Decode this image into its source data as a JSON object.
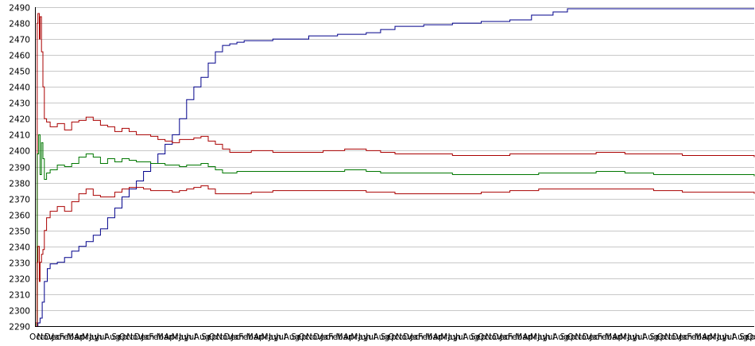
{
  "chart_data": {
    "type": "line",
    "title": "",
    "xlabel": "",
    "ylabel": "",
    "ylim": [
      2290,
      2490
    ],
    "y_ticks": [
      2290,
      2300,
      2310,
      2320,
      2330,
      2340,
      2350,
      2360,
      2370,
      2380,
      2390,
      2400,
      2410,
      2420,
      2430,
      2440,
      2450,
      2460,
      2470,
      2480,
      2490
    ],
    "x_range": [
      0,
      1000
    ],
    "x_tick_labels": [
      "Oct",
      "Nov",
      "Dec",
      "Jan",
      "Feb",
      "Mar",
      "Apr",
      "May",
      "Jun",
      "Jul",
      "Aug",
      "Sep",
      "Oct",
      "Nov",
      "Dec",
      "Jan",
      "Feb",
      "Mar",
      "Apr",
      "May",
      "Jun",
      "Jul",
      "Aug",
      "Sep",
      "Oct",
      "Nov",
      "Dec",
      "Jan",
      "Feb",
      "Mar",
      "Apr",
      "May",
      "Jun",
      "Jul",
      "Aug",
      "Sep",
      "Oct",
      "Nov",
      "Dec",
      "Jan",
      "Feb",
      "Mar",
      "Apr",
      "May",
      "Jun",
      "Jul",
      "Aug",
      "Sep",
      "Oct",
      "Nov",
      "Dec",
      "Jan",
      "Feb",
      "Mar",
      "Apr",
      "May",
      "Jun",
      "Jul",
      "Aug",
      "Sep",
      "Oct",
      "Nov",
      "Dec",
      "Jan",
      "Feb",
      "Mar",
      "Apr",
      "May",
      "Jun",
      "Jul",
      "Aug",
      "Sep",
      "Oct",
      "Nov",
      "Dec",
      "Jan",
      "Feb",
      "Mar",
      "Apr",
      "May",
      "Jun",
      "Jul",
      "Aug",
      "Sep",
      "Oct",
      "Nov",
      "Dec",
      "Jan",
      "Feb",
      "Mar",
      "Apr",
      "May",
      "Jun",
      "Jul",
      "Aug",
      "Sep",
      "Oct",
      "Nov"
    ],
    "grid": true,
    "legend": "none",
    "series": [
      {
        "color": "#00008b",
        "x": [
          0,
          3,
          6,
          9,
          12,
          16,
          20,
          30,
          40,
          50,
          60,
          70,
          80,
          90,
          100,
          110,
          120,
          130,
          140,
          150,
          160,
          170,
          180,
          190,
          200,
          210,
          220,
          230,
          240,
          250,
          260,
          270,
          280,
          290,
          300,
          330,
          360,
          380,
          420,
          460,
          480,
          500,
          540,
          580,
          620,
          660,
          690,
          720,
          740,
          800,
          860,
          900,
          950,
          1000
        ],
        "y": [
          2290,
          2292,
          2295,
          2305,
          2318,
          2326,
          2329,
          2330,
          2333,
          2337,
          2340,
          2343,
          2347,
          2351,
          2358,
          2364,
          2371,
          2376,
          2381,
          2387,
          2392,
          2398,
          2404,
          2410,
          2420,
          2432,
          2440,
          2446,
          2455,
          2462,
          2466,
          2467,
          2468,
          2469,
          2469,
          2470,
          2470,
          2472,
          2473,
          2474,
          2476,
          2478,
          2479,
          2480,
          2481,
          2482,
          2485,
          2487,
          2489,
          2489,
          2489,
          2489,
          2489,
          2489
        ]
      },
      {
        "color": "#aa0000",
        "x": [
          0,
          2,
          3,
          5,
          6,
          8,
          10,
          12,
          15,
          20,
          30,
          40,
          50,
          60,
          70,
          80,
          90,
          100,
          110,
          120,
          130,
          140,
          150,
          160,
          170,
          180,
          190,
          200,
          210,
          220,
          230,
          240,
          250,
          260,
          270,
          280,
          300,
          330,
          360,
          400,
          430,
          460,
          480,
          500,
          540,
          580,
          620,
          660,
          700,
          740,
          780,
          820,
          860,
          900,
          950,
          1000
        ],
        "y": [
          2292,
          2480,
          2486,
          2470,
          2484,
          2462,
          2440,
          2420,
          2418,
          2415,
          2417,
          2413,
          2418,
          2419,
          2421,
          2419,
          2416,
          2415,
          2412,
          2414,
          2412,
          2410,
          2410,
          2409,
          2407,
          2406,
          2405,
          2407,
          2407,
          2408,
          2409,
          2406,
          2404,
          2401,
          2399,
          2399,
          2400,
          2399,
          2399,
          2400,
          2401,
          2400,
          2399,
          2398,
          2398,
          2397,
          2397,
          2398,
          2398,
          2398,
          2399,
          2398,
          2398,
          2397,
          2397,
          2396
        ]
      },
      {
        "color": "#007700",
        "x": [
          0,
          2,
          4,
          6,
          8,
          10,
          12,
          15,
          20,
          30,
          40,
          50,
          60,
          70,
          80,
          90,
          100,
          110,
          120,
          130,
          140,
          150,
          160,
          170,
          180,
          190,
          200,
          210,
          220,
          230,
          240,
          250,
          260,
          270,
          280,
          300,
          330,
          360,
          400,
          430,
          460,
          480,
          500,
          540,
          580,
          620,
          660,
          700,
          740,
          780,
          820,
          860,
          900,
          950,
          1000
        ],
        "y": [
          2291,
          2398,
          2410,
          2385,
          2405,
          2395,
          2382,
          2386,
          2388,
          2391,
          2390,
          2392,
          2396,
          2398,
          2396,
          2392,
          2395,
          2393,
          2395,
          2394,
          2393,
          2393,
          2392,
          2392,
          2391,
          2391,
          2390,
          2391,
          2391,
          2392,
          2390,
          2388,
          2386,
          2386,
          2387,
          2387,
          2387,
          2387,
          2387,
          2388,
          2387,
          2386,
          2386,
          2386,
          2385,
          2385,
          2385,
          2386,
          2386,
          2387,
          2386,
          2385,
          2385,
          2385,
          2384
        ]
      },
      {
        "color": "#aa0000",
        "x": [
          0,
          2,
          3,
          5,
          6,
          8,
          10,
          12,
          15,
          20,
          30,
          40,
          50,
          60,
          70,
          80,
          90,
          100,
          110,
          120,
          130,
          140,
          150,
          160,
          170,
          180,
          190,
          200,
          210,
          220,
          230,
          240,
          250,
          260,
          270,
          280,
          300,
          330,
          360,
          400,
          430,
          460,
          480,
          500,
          540,
          580,
          620,
          660,
          700,
          740,
          780,
          820,
          860,
          900,
          950,
          1000
        ],
        "y": [
          2290,
          2330,
          2340,
          2318,
          2330,
          2335,
          2338,
          2350,
          2358,
          2362,
          2365,
          2362,
          2368,
          2373,
          2376,
          2372,
          2371,
          2371,
          2374,
          2376,
          2377,
          2377,
          2376,
          2375,
          2375,
          2375,
          2374,
          2375,
          2376,
          2377,
          2378,
          2376,
          2373,
          2373,
          2373,
          2373,
          2374,
          2375,
          2375,
          2375,
          2375,
          2374,
          2374,
          2373,
          2373,
          2373,
          2374,
          2375,
          2376,
          2376,
          2376,
          2376,
          2375,
          2374,
          2374,
          2373
        ]
      }
    ]
  }
}
